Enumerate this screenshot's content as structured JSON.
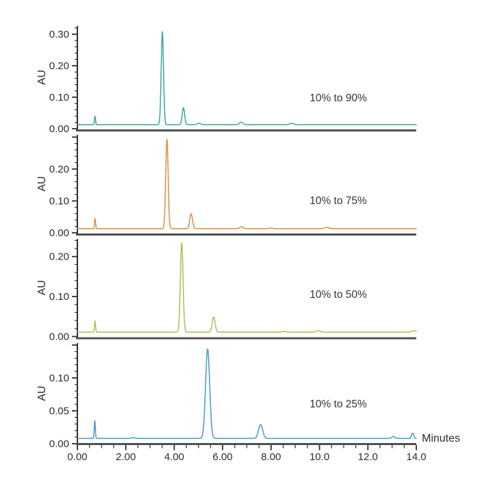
{
  "figure": {
    "background": "#ffffff",
    "axis_color": "#2d2d2d",
    "separator_color": "#4f4f4f",
    "text_color": "#2b2b2b",
    "annotation_color": "#333333"
  },
  "chart_data": {
    "type": "line",
    "title": "",
    "xlabel": "Minutes",
    "x_range": [
      0,
      14
    ],
    "x_minor_step": 0.5,
    "x_major_ticks": [
      {
        "value": 0,
        "label": "0.00"
      },
      {
        "value": 2,
        "label": "2.00"
      },
      {
        "value": 4,
        "label": "4.00"
      },
      {
        "value": 6,
        "label": "6.00"
      },
      {
        "value": 8,
        "label": "8.00"
      },
      {
        "value": 10,
        "label": "10.0"
      },
      {
        "value": 12,
        "label": "12.0"
      },
      {
        "value": 14,
        "label": "14.0"
      }
    ],
    "grid": false,
    "legend": "none",
    "panels": [
      {
        "annotation": "10% to 90%",
        "color": "#43ab9d",
        "ylabel": "AU",
        "ylim": [
          0,
          0.326
        ],
        "y_major_step": 0.1,
        "y_minor_step": 0.02,
        "y_tick_labels": [
          {
            "value": 0.0,
            "label": "0.00"
          },
          {
            "value": 0.1,
            "label": "0.10"
          },
          {
            "value": 0.2,
            "label": "0.20"
          },
          {
            "value": 0.3,
            "label": "0.30"
          }
        ],
        "baseline_au": 0.013,
        "peaks": [
          {
            "t": 0.73,
            "h": 0.027,
            "sigma": 0.022
          },
          {
            "t": 3.51,
            "h": 0.295,
            "sigma": 0.048
          },
          {
            "t": 4.38,
            "h": 0.054,
            "sigma": 0.05
          },
          {
            "t": 5.02,
            "h": 0.005,
            "sigma": 0.06
          },
          {
            "t": 6.76,
            "h": 0.008,
            "sigma": 0.07
          },
          {
            "t": 8.85,
            "h": 0.004,
            "sigma": 0.08
          }
        ]
      },
      {
        "annotation": "10% to 75%",
        "color": "#e0914d",
        "ylabel": "AU",
        "ylim": [
          0,
          0.307
        ],
        "y_major_step": 0.1,
        "y_minor_step": 0.02,
        "y_tick_labels": [
          {
            "value": 0.0,
            "label": "0.00"
          },
          {
            "value": 0.1,
            "label": "0.10"
          },
          {
            "value": 0.2,
            "label": "0.20"
          }
        ],
        "baseline_au": 0.013,
        "peaks": [
          {
            "t": 0.73,
            "h": 0.032,
            "sigma": 0.022
          },
          {
            "t": 3.7,
            "h": 0.28,
            "sigma": 0.05
          },
          {
            "t": 4.7,
            "h": 0.047,
            "sigma": 0.055
          },
          {
            "t": 6.78,
            "h": 0.006,
            "sigma": 0.07
          },
          {
            "t": 8.0,
            "h": 0.002,
            "sigma": 0.08
          },
          {
            "t": 10.3,
            "h": 0.004,
            "sigma": 0.09
          }
        ]
      },
      {
        "annotation": "10% to 50%",
        "color": "#b3c05b",
        "ylabel": "AU",
        "ylim": [
          0,
          0.244
        ],
        "y_major_step": 0.1,
        "y_minor_step": 0.02,
        "y_tick_labels": [
          {
            "value": 0.0,
            "label": "0.00"
          },
          {
            "value": 0.1,
            "label": "0.10"
          },
          {
            "value": 0.2,
            "label": "0.20"
          }
        ],
        "baseline_au": 0.011,
        "peaks": [
          {
            "t": 0.73,
            "h": 0.028,
            "sigma": 0.022
          },
          {
            "t": 4.31,
            "h": 0.223,
            "sigma": 0.055
          },
          {
            "t": 5.63,
            "h": 0.038,
            "sigma": 0.06
          },
          {
            "t": 8.55,
            "h": 0.002,
            "sigma": 0.08
          },
          {
            "t": 9.95,
            "h": 0.004,
            "sigma": 0.09
          },
          {
            "t": 13.9,
            "h": 0.004,
            "sigma": 0.08
          }
        ]
      },
      {
        "annotation": "10% to 25%",
        "color": "#4d9fc9",
        "ylabel": "AU",
        "ylim": [
          0,
          0.153
        ],
        "y_major_step": 0.05,
        "y_minor_step": 0.01,
        "y_tick_labels": [
          {
            "value": 0.0,
            "label": "0.00"
          },
          {
            "value": 0.05,
            "label": "0.05"
          },
          {
            "value": 0.1,
            "label": "0.10"
          }
        ],
        "baseline_au": 0.008,
        "peaks": [
          {
            "t": 0.72,
            "h": 0.027,
            "sigma": 0.022
          },
          {
            "t": 2.3,
            "h": 0.001,
            "sigma": 0.1
          },
          {
            "t": 5.38,
            "h": 0.136,
            "sigma": 0.085
          },
          {
            "t": 7.57,
            "h": 0.021,
            "sigma": 0.085
          },
          {
            "t": 13.05,
            "h": 0.003,
            "sigma": 0.06
          },
          {
            "t": 13.85,
            "h": 0.008,
            "sigma": 0.045
          }
        ]
      }
    ]
  }
}
